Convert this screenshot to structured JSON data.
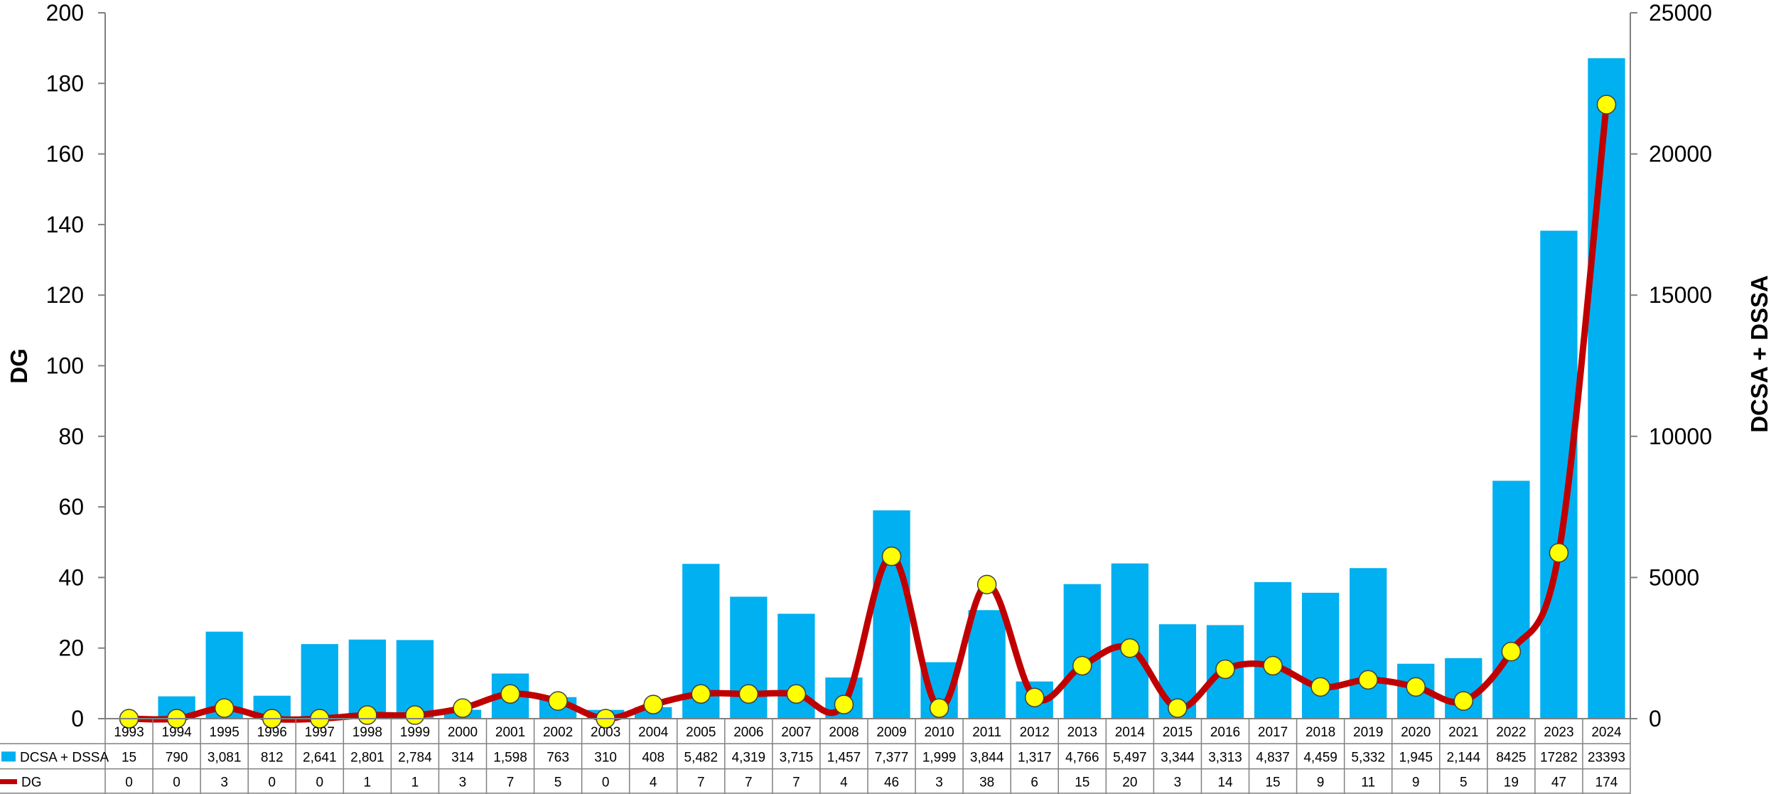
{
  "chart_data": {
    "type": "bar",
    "categories": [
      "1993",
      "1994",
      "1995",
      "1996",
      "1997",
      "1998",
      "1999",
      "2000",
      "2001",
      "2002",
      "2003",
      "2004",
      "2005",
      "2006",
      "2007",
      "2008",
      "2009",
      "2010",
      "2011",
      "2012",
      "2013",
      "2014",
      "2015",
      "2016",
      "2017",
      "2018",
      "2019",
      "2020",
      "2021",
      "2022",
      "2023",
      "2024"
    ],
    "series": [
      {
        "name": "DCSA + DSSA",
        "type": "bar",
        "axis": "right",
        "color": "#00B0F0",
        "values": [
          15,
          790,
          3081,
          812,
          2641,
          2801,
          2784,
          314,
          1598,
          763,
          310,
          408,
          5482,
          4319,
          3715,
          1457,
          7377,
          1999,
          3844,
          1317,
          4766,
          5497,
          3344,
          3313,
          4837,
          4459,
          5332,
          1945,
          2144,
          8425,
          17282,
          23393
        ],
        "labels": [
          "15",
          "790",
          "3,081",
          "812",
          "2,641",
          "2,801",
          "2,784",
          "314",
          "1,598",
          "763",
          "310",
          "408",
          "5,482",
          "4,319",
          "3,715",
          "1,457",
          "7,377",
          "1,999",
          "3,844",
          "1,317",
          "4,766",
          "5,497",
          "3,344",
          "3,313",
          "4,837",
          "4,459",
          "5,332",
          "1,945",
          "2,144",
          "8425",
          "17282",
          "23393"
        ]
      },
      {
        "name": "DG",
        "type": "line",
        "axis": "left",
        "color": "#C00000",
        "marker_color": "#FFFF00",
        "values": [
          0,
          0,
          3,
          0,
          0,
          1,
          1,
          3,
          7,
          5,
          0,
          4,
          7,
          7,
          7,
          4,
          46,
          3,
          38,
          6,
          15,
          20,
          3,
          14,
          15,
          9,
          11,
          9,
          5,
          19,
          47,
          174
        ],
        "labels": [
          "0",
          "0",
          "3",
          "0",
          "0",
          "1",
          "1",
          "3",
          "7",
          "5",
          "0",
          "4",
          "7",
          "7",
          "7",
          "4",
          "46",
          "3",
          "38",
          "6",
          "15",
          "20",
          "3",
          "14",
          "15",
          "9",
          "11",
          "9",
          "5",
          "19",
          "47",
          "174"
        ]
      }
    ],
    "y_left": {
      "label": "DG",
      "min": 0,
      "max": 200,
      "ticks": [
        "0",
        "20",
        "40",
        "60",
        "80",
        "100",
        "120",
        "140",
        "160",
        "180",
        "200"
      ]
    },
    "y_right": {
      "label": "DCSA + DSSA",
      "min": 0,
      "max": 25000,
      "ticks": [
        "0",
        "5000",
        "10000",
        "15000",
        "20000",
        "25000"
      ]
    },
    "legend": "data-table",
    "grid": false
  }
}
